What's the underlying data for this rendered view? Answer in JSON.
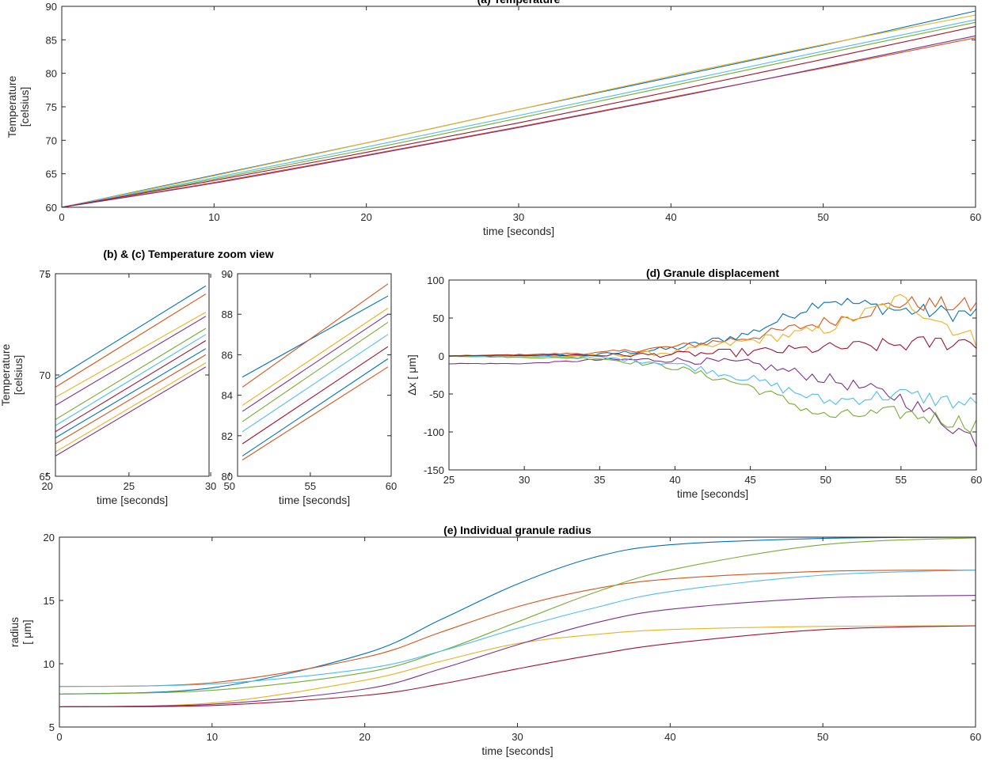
{
  "figure": {
    "zoom_title": "(b) & (c) Temperature zoom view"
  },
  "palette": [
    "#0072BD",
    "#D95319",
    "#EDB120",
    "#7E2F8E",
    "#77AC30",
    "#4DBEEE",
    "#A2142F"
  ],
  "chart_data": [
    {
      "id": "a",
      "type": "line",
      "title": "(a) Temperature",
      "xlabel": "time [seconds]",
      "ylabel": [
        "Temperature",
        "[celsius]"
      ],
      "xlim": [
        0,
        60
      ],
      "ylim": [
        60,
        90
      ],
      "xticks": [
        0,
        10,
        20,
        30,
        40,
        50,
        60
      ],
      "yticks": [
        60,
        65,
        70,
        75,
        80,
        85,
        90
      ],
      "grid": false,
      "series_desc": "20 near-linear heating curves starting at 60 °C at t=0 and ending between about 85.3 and 89.3 °C at t=60",
      "x": [
        0,
        10,
        20,
        30,
        40,
        50,
        60
      ],
      "series": [
        {
          "values": [
            60,
            64.8,
            69.6,
            74.6,
            79.4,
            84.2,
            89.3
          ]
        },
        {
          "values": [
            60,
            63.7,
            67.8,
            72.0,
            76.4,
            80.8,
            85.3
          ]
        },
        {
          "values": [
            60,
            64.7,
            69.6,
            74.6,
            79.6,
            84.3,
            88.7
          ]
        },
        {
          "values": [
            60,
            63.6,
            67.7,
            71.9,
            76.3,
            80.9,
            85.6
          ]
        },
        {
          "values": [
            60,
            64.2,
            68.6,
            73.3,
            78.1,
            82.9,
            87.6
          ]
        },
        {
          "values": [
            60,
            64.4,
            69.0,
            73.7,
            78.5,
            83.3,
            88.0
          ]
        },
        {
          "values": [
            60,
            64.0,
            68.2,
            72.6,
            77.3,
            82.1,
            87.0
          ]
        }
      ]
    },
    {
      "id": "b",
      "type": "line",
      "title": "",
      "xlabel": "time [seconds]",
      "ylabel": [
        "Temperature",
        "[celsius]"
      ],
      "xlim": [
        20.5,
        29.9
      ],
      "ylim": [
        65,
        75
      ],
      "xticks": [
        20,
        25,
        30
      ],
      "yticks": [
        65,
        70,
        75
      ],
      "grid": false,
      "x": [
        20.5,
        29.7
      ],
      "series": [
        {
          "values": [
            69.8,
            74.4
          ]
        },
        {
          "values": [
            69.4,
            74.0
          ]
        },
        {
          "values": [
            68.9,
            73.1
          ]
        },
        {
          "values": [
            68.5,
            72.9
          ]
        },
        {
          "values": [
            67.8,
            72.3
          ]
        },
        {
          "values": [
            67.5,
            72.0
          ]
        },
        {
          "values": [
            67.2,
            71.7
          ]
        },
        {
          "values": [
            66.9,
            71.3
          ]
        },
        {
          "values": [
            66.6,
            71.0
          ]
        },
        {
          "values": [
            66.2,
            70.6
          ]
        },
        {
          "values": [
            66.0,
            70.4
          ]
        }
      ]
    },
    {
      "id": "c",
      "type": "line",
      "title": "",
      "xlabel": "time [seconds]",
      "ylabel": "",
      "xlim": [
        50.5,
        60
      ],
      "ylim": [
        80,
        90
      ],
      "xticks": [
        50,
        55,
        60
      ],
      "yticks": [
        80,
        82,
        84,
        86,
        88,
        90
      ],
      "grid": false,
      "x": [
        50.8,
        59.8
      ],
      "series": [
        {
          "values": [
            84.9,
            88.9
          ]
        },
        {
          "values": [
            84.4,
            89.5
          ]
        },
        {
          "values": [
            83.5,
            88.3
          ]
        },
        {
          "values": [
            83.2,
            88.0
          ]
        },
        {
          "values": [
            82.7,
            87.6
          ]
        },
        {
          "values": [
            82.2,
            87.0
          ]
        },
        {
          "values": [
            81.6,
            86.4
          ]
        },
        {
          "values": [
            81.0,
            85.8
          ]
        },
        {
          "values": [
            80.8,
            85.4
          ]
        }
      ]
    },
    {
      "id": "d",
      "type": "line",
      "title": "(d) Granule displacement",
      "xlabel": "time [seconds]",
      "ylabel": "Δx [ μm]",
      "xlim": [
        25,
        60
      ],
      "ylim": [
        -150,
        100
      ],
      "xticks": [
        25,
        30,
        35,
        40,
        45,
        50,
        55,
        60
      ],
      "yticks": [
        -150,
        -100,
        -50,
        0,
        50,
        100
      ],
      "grid": false,
      "series_desc": "about 20 random-walk traces that stay near 0 until ~35 s and spread to roughly -110 to +80 μm by 60 s",
      "x": [
        25,
        30,
        35,
        40,
        45,
        50,
        55,
        60
      ],
      "series": [
        {
          "values": [
            0,
            1,
            2,
            10,
            30,
            75,
            60,
            55
          ]
        },
        {
          "values": [
            0,
            2,
            4,
            12,
            25,
            45,
            70,
            65
          ]
        },
        {
          "values": [
            0,
            -1,
            0,
            5,
            20,
            35,
            75,
            20
          ]
        },
        {
          "values": [
            -10,
            -10,
            -5,
            -5,
            -10,
            -30,
            -55,
            -110
          ]
        },
        {
          "values": [
            0,
            -2,
            -3,
            -15,
            -40,
            -80,
            -75,
            -90
          ]
        },
        {
          "values": [
            0,
            0,
            -2,
            -10,
            -30,
            -60,
            -50,
            -65
          ]
        },
        {
          "values": [
            0,
            1,
            1,
            2,
            5,
            10,
            15,
            20
          ]
        }
      ]
    },
    {
      "id": "e",
      "type": "line",
      "title": "(e) Individual granule radius",
      "xlabel": "time [seconds]",
      "ylabel": [
        "radius",
        "[ μm]"
      ],
      "xlim": [
        0,
        60
      ],
      "ylim": [
        5,
        20
      ],
      "xticks": [
        0,
        10,
        20,
        30,
        40,
        50,
        60
      ],
      "yticks": [
        5,
        10,
        15,
        20
      ],
      "grid": false,
      "series_desc": "sigmoidal growth curves from initial radii 6.6 / 7.6 / 8.2 μm to plateaus at 13.0 / 15.4 / 17.4 / 20.0 μm",
      "x": [
        0,
        10,
        20,
        25,
        30,
        35,
        40,
        50,
        60
      ],
      "series": [
        {
          "values": [
            7.6,
            8.1,
            10.8,
            13.5,
            16.3,
            18.4,
            19.4,
            19.9,
            20.0
          ]
        },
        {
          "values": [
            8.2,
            8.5,
            10.5,
            12.5,
            14.5,
            15.9,
            16.7,
            17.3,
            17.4
          ]
        },
        {
          "values": [
            6.6,
            6.9,
            8.7,
            10.2,
            11.6,
            12.3,
            12.7,
            12.95,
            13.0
          ]
        },
        {
          "values": [
            6.6,
            6.8,
            8.0,
            9.6,
            11.5,
            13.2,
            14.3,
            15.2,
            15.4
          ]
        },
        {
          "values": [
            7.6,
            7.9,
            9.3,
            11.0,
            13.3,
            15.6,
            17.4,
            19.4,
            19.95
          ]
        },
        {
          "values": [
            8.2,
            8.4,
            9.6,
            11.0,
            12.8,
            14.4,
            15.7,
            17.0,
            17.4
          ]
        },
        {
          "values": [
            6.6,
            6.7,
            7.5,
            8.4,
            9.6,
            10.7,
            11.6,
            12.7,
            13.0
          ]
        }
      ]
    }
  ]
}
